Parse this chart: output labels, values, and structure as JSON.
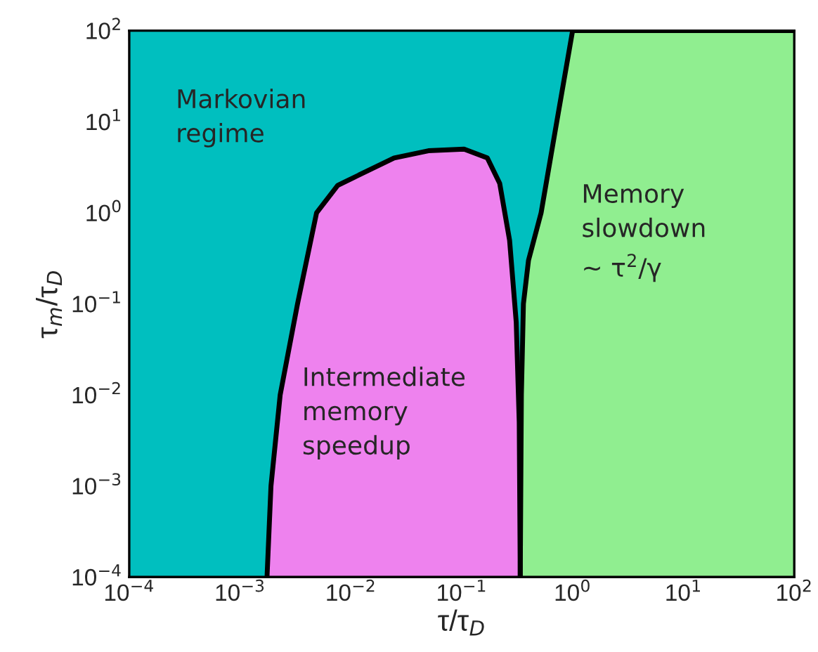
{
  "chart_data": {
    "type": "area",
    "xlabel": "τ/τ$_{D}$",
    "ylabel": "τ$_{m}$/τ$_{D}$",
    "log": "xy",
    "xlim": [
      0.0001,
      100
    ],
    "ylim": [
      0.0001,
      100
    ],
    "xticks": [
      {
        "value": 0.0001,
        "label": "10$^{−4}$"
      },
      {
        "value": 0.001,
        "label": "10$^{−3}$"
      },
      {
        "value": 0.01,
        "label": "10$^{−2}$"
      },
      {
        "value": 0.1,
        "label": "10$^{−1}$"
      },
      {
        "value": 1,
        "label": "10$^{0}$"
      },
      {
        "value": 10,
        "label": "10$^{1}$"
      },
      {
        "value": 100,
        "label": "10$^{2}$"
      }
    ],
    "yticks": [
      {
        "value": 0.0001,
        "label": "10$^{−4}$"
      },
      {
        "value": 0.001,
        "label": "10$^{−3}$"
      },
      {
        "value": 0.01,
        "label": "10$^{−2}$"
      },
      {
        "value": 0.1,
        "label": "10$^{−1}$"
      },
      {
        "value": 1,
        "label": "10$^{0}$"
      },
      {
        "value": 10,
        "label": "10$^{1}$"
      },
      {
        "value": 100,
        "label": "10$^{2}$"
      }
    ],
    "series": [
      {
        "color": "#00bfbf",
        "x": [
          0.0001,
          100
        ],
        "values": [
          100,
          100
        ]
      },
      {
        "color": "#ee82ee",
        "line_style": "solid",
        "x": [
          0.00175,
          0.0019,
          0.0023,
          0.0033,
          0.0049,
          0.0076,
          0.0245,
          0.05,
          0.105,
          0.17,
          0.22,
          0.27,
          0.31,
          0.33,
          0.337
        ],
        "values": [
          0.0001,
          0.001,
          0.01,
          0.1,
          1,
          2,
          4,
          4.8,
          5,
          4,
          2.1,
          0.5,
          0.063,
          0.005,
          0.0001
        ]
      },
      {
        "color": "#90ee90",
        "line_style": "solid",
        "x": [
          0.337,
          0.345,
          0.36,
          0.4,
          0.52,
          0.72,
          1.0,
          100
        ],
        "values": [
          0.0001,
          0.01,
          0.1,
          0.3,
          1,
          10,
          100,
          100
        ]
      }
    ],
    "annotations": [
      "Markovian\nregime",
      "Intermediate\nmemory\nspeedup",
      "Memory\nslowdown\n∼ τ$^{2}$/γ"
    ]
  }
}
